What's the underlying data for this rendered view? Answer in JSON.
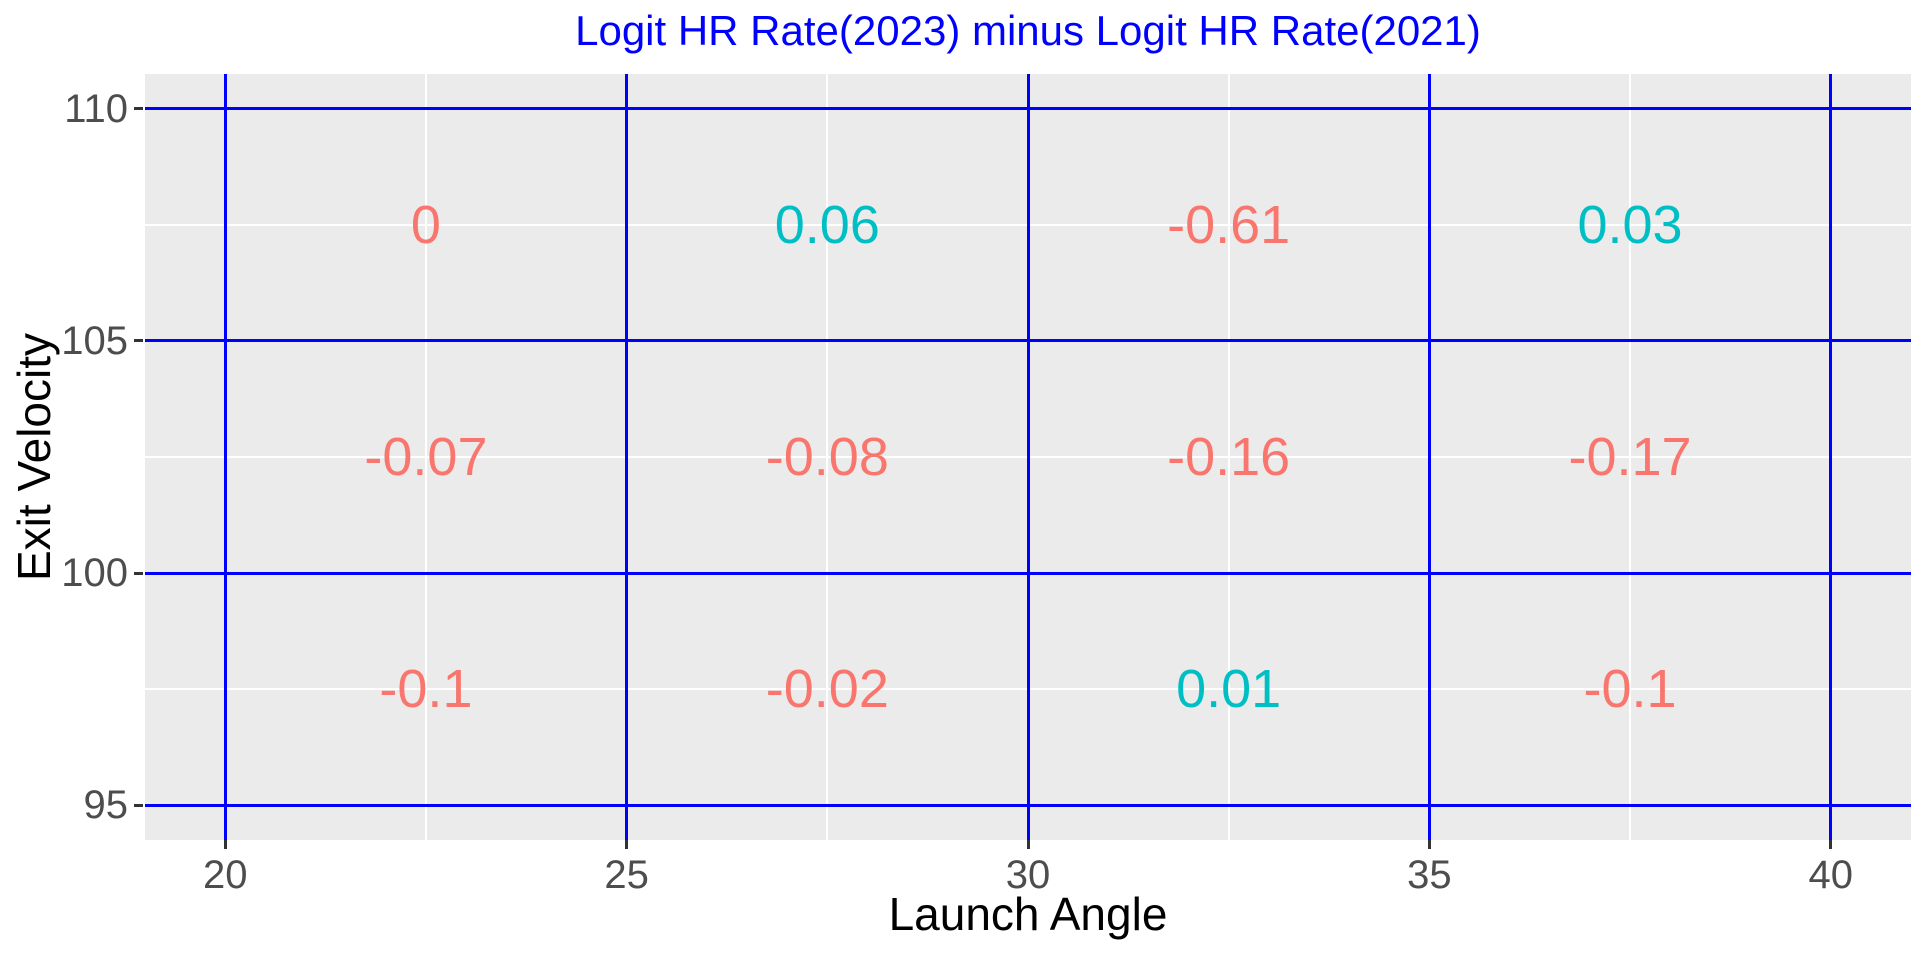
{
  "chart_data": {
    "type": "heatmap",
    "title": "Logit HR Rate(2023) minus Logit HR Rate(2021)",
    "xlabel": "Launch Angle",
    "ylabel": "Exit Velocity",
    "x_ticks": [
      20,
      25,
      30,
      35,
      40
    ],
    "y_ticks": [
      110,
      105,
      100,
      95
    ],
    "x_minor": [
      22.5,
      27.5,
      32.5,
      37.5
    ],
    "y_minor": [
      107.5,
      102.5,
      97.5
    ],
    "xlim": [
      19,
      41
    ],
    "ylim": [
      94.25,
      110.75
    ],
    "grid": "major-blue-on, minor-white-on",
    "legend_position": "none",
    "cells": [
      {
        "x": 22.5,
        "y": 107.5,
        "value": 0,
        "label": "0",
        "color_key": "nonpositive"
      },
      {
        "x": 27.5,
        "y": 107.5,
        "value": 0.06,
        "label": "0.06",
        "color_key": "positive"
      },
      {
        "x": 32.5,
        "y": 107.5,
        "value": -0.61,
        "label": "-0.61",
        "color_key": "nonpositive"
      },
      {
        "x": 37.5,
        "y": 107.5,
        "value": 0.03,
        "label": "0.03",
        "color_key": "positive"
      },
      {
        "x": 22.5,
        "y": 102.5,
        "value": -0.07,
        "label": "-0.07",
        "color_key": "nonpositive"
      },
      {
        "x": 27.5,
        "y": 102.5,
        "value": -0.08,
        "label": "-0.08",
        "color_key": "nonpositive"
      },
      {
        "x": 32.5,
        "y": 102.5,
        "value": -0.16,
        "label": "-0.16",
        "color_key": "nonpositive"
      },
      {
        "x": 37.5,
        "y": 102.5,
        "value": -0.17,
        "label": "-0.17",
        "color_key": "nonpositive"
      },
      {
        "x": 22.5,
        "y": 97.5,
        "value": -0.1,
        "label": "-0.1",
        "color_key": "nonpositive"
      },
      {
        "x": 27.5,
        "y": 97.5,
        "value": -0.02,
        "label": "-0.02",
        "color_key": "nonpositive"
      },
      {
        "x": 32.5,
        "y": 97.5,
        "value": 0.01,
        "label": "0.01",
        "color_key": "positive"
      },
      {
        "x": 37.5,
        "y": 97.5,
        "value": -0.1,
        "label": "-0.1",
        "color_key": "nonpositive"
      }
    ],
    "colors": {
      "positive": "#00BFC4",
      "nonpositive": "#F8766D",
      "title": "#0000FF",
      "grid_major": "#0000FF",
      "grid_minor": "#FFFFFF",
      "panel_bg": "#EBEBEB",
      "tick_label": "#4D4D4D",
      "tick_mark": "#333333",
      "axis_title": "#000000"
    }
  }
}
